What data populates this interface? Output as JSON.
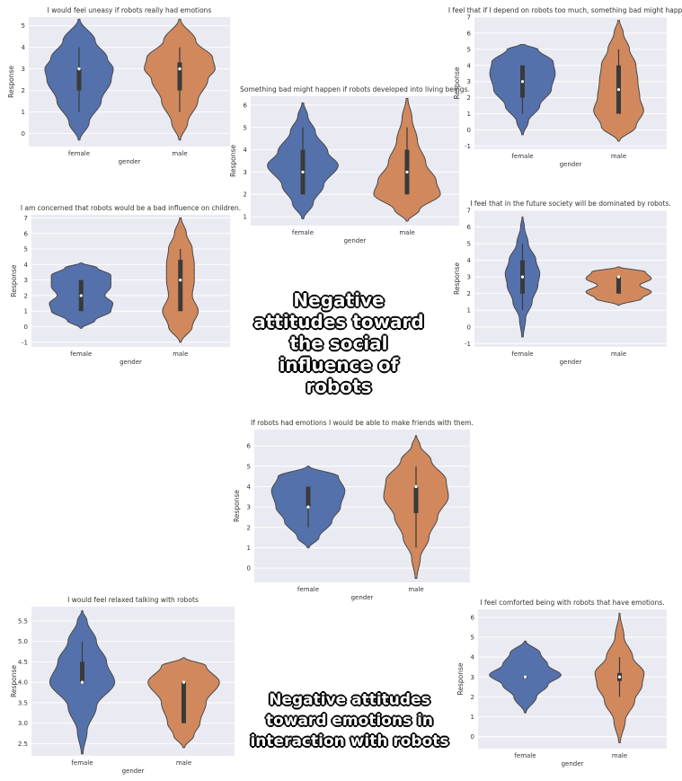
{
  "colors": {
    "female": "#5471ab",
    "male": "#d1885c",
    "plot_bg": "#eaeaf2",
    "grid": "#ffffff",
    "box": "#3a3a3a",
    "outline": "#4a4a4a"
  },
  "captions": {
    "social": "Negative attitudes toward the social influence of robots",
    "emotions": "Negative attitudes toward emotions in interaction with robots"
  },
  "chart_data": [
    {
      "id": "c1",
      "type": "violin",
      "title": "I would feel uneasy if robots really had emotions",
      "xlabel": "gender",
      "ylabel": "Response",
      "categories": [
        "female",
        "male"
      ],
      "ylim": [
        -0.6,
        5.4
      ],
      "yticks": [
        "0",
        "1",
        "2",
        "3",
        "4",
        "5"
      ],
      "series": [
        {
          "name": "female",
          "min": -0.3,
          "max": 5.3,
          "q1": 2,
          "median": 3,
          "q3": 3,
          "whisker_low": 1,
          "whisker_high": 4,
          "density": [
            [
              -0.3,
              0.02
            ],
            [
              0.5,
              0.25
            ],
            [
              1.5,
              0.55
            ],
            [
              2.5,
              0.8
            ],
            [
              3,
              0.85
            ],
            [
              3.5,
              0.7
            ],
            [
              4.3,
              0.4
            ],
            [
              5.3,
              0.02
            ]
          ]
        },
        {
          "name": "male",
          "min": -0.3,
          "max": 5.3,
          "q1": 2,
          "median": 3,
          "q3": 3.3,
          "whisker_low": 1,
          "whisker_high": 4,
          "density": [
            [
              -0.3,
              0.02
            ],
            [
              0.5,
              0.2
            ],
            [
              1.5,
              0.45
            ],
            [
              2.5,
              0.7
            ],
            [
              3,
              0.88
            ],
            [
              3.5,
              0.82
            ],
            [
              4.3,
              0.4
            ],
            [
              5.3,
              0.02
            ]
          ]
        }
      ]
    },
    {
      "id": "c2",
      "type": "violin",
      "title": "Something bad might happen if robots developed into living beings.",
      "xlabel": "gender",
      "ylabel": "Response",
      "categories": [
        "female",
        "male"
      ],
      "ylim": [
        0.6,
        6.4
      ],
      "yticks": [
        "1",
        "2",
        "3",
        "4",
        "5",
        "6"
      ],
      "series": [
        {
          "name": "female",
          "min": 0.9,
          "max": 6.1,
          "q1": 2,
          "median": 3,
          "q3": 4,
          "whisker_low": 2,
          "whisker_high": 5,
          "density": [
            [
              0.9,
              0.02
            ],
            [
              1.6,
              0.25
            ],
            [
              2.4,
              0.5
            ],
            [
              3.3,
              0.85
            ],
            [
              3.9,
              0.6
            ],
            [
              4.8,
              0.3
            ],
            [
              5.5,
              0.12
            ],
            [
              6.1,
              0.02
            ]
          ]
        },
        {
          "name": "male",
          "min": 0.8,
          "max": 6.3,
          "q1": 2,
          "median": 3,
          "q3": 4,
          "whisker_low": 2,
          "whisker_high": 5,
          "density": [
            [
              0.8,
              0.02
            ],
            [
              1.3,
              0.3
            ],
            [
              2,
              0.8
            ],
            [
              2.6,
              0.7
            ],
            [
              3.4,
              0.45
            ],
            [
              4.4,
              0.25
            ],
            [
              5.4,
              0.12
            ],
            [
              6.3,
              0.02
            ]
          ]
        }
      ]
    },
    {
      "id": "c3",
      "type": "violin",
      "title": "I feel that if I depend on robots too much, something bad might happen.",
      "xlabel": "gender",
      "ylabel": "Response",
      "categories": [
        "female",
        "male"
      ],
      "ylim": [
        -1.2,
        7.0
      ],
      "yticks": [
        "-1",
        "0",
        "1",
        "2",
        "3",
        "4",
        "5",
        "6",
        "7"
      ],
      "series": [
        {
          "name": "female",
          "min": -0.3,
          "max": 5.3,
          "q1": 2,
          "median": 3,
          "q3": 4,
          "whisker_low": 1,
          "whisker_high": 4,
          "density": [
            [
              -0.3,
              0.02
            ],
            [
              0.5,
              0.15
            ],
            [
              1.5,
              0.45
            ],
            [
              2.5,
              0.75
            ],
            [
              3.5,
              0.85
            ],
            [
              4.2,
              0.8
            ],
            [
              5.0,
              0.4
            ],
            [
              5.3,
              0.05
            ]
          ]
        },
        {
          "name": "male",
          "min": -0.7,
          "max": 6.8,
          "q1": 1,
          "median": 2.5,
          "q3": 4,
          "whisker_low": 1,
          "whisker_high": 5,
          "density": [
            [
              -0.7,
              0.02
            ],
            [
              0.2,
              0.45
            ],
            [
              1.2,
              0.65
            ],
            [
              2,
              0.55
            ],
            [
              3,
              0.5
            ],
            [
              4,
              0.45
            ],
            [
              5,
              0.28
            ],
            [
              6,
              0.12
            ],
            [
              6.8,
              0.02
            ]
          ]
        }
      ]
    },
    {
      "id": "c4",
      "type": "violin",
      "title": "I am concerned that robots would be a bad influence on children.",
      "xlabel": "gender",
      "ylabel": "Response",
      "categories": [
        "female",
        "male"
      ],
      "ylim": [
        -1.3,
        7.2
      ],
      "yticks": [
        "-1",
        "0",
        "1",
        "2",
        "3",
        "4",
        "5",
        "6",
        "7"
      ],
      "series": [
        {
          "name": "female",
          "min": -0.1,
          "max": 4.1,
          "q1": 1,
          "median": 2,
          "q3": 3,
          "whisker_low": 1,
          "whisker_high": 3,
          "density": [
            [
              -0.1,
              0.02
            ],
            [
              0.4,
              0.35
            ],
            [
              1.0,
              0.75
            ],
            [
              1.5,
              0.8
            ],
            [
              2.0,
              0.6
            ],
            [
              2.6,
              0.75
            ],
            [
              3.3,
              0.75
            ],
            [
              3.8,
              0.4
            ],
            [
              4.1,
              0.02
            ]
          ]
        },
        {
          "name": "male",
          "min": -1.0,
          "max": 7.0,
          "q1": 1,
          "median": 3,
          "q3": 4.3,
          "whisker_low": 1,
          "whisker_high": 5,
          "density": [
            [
              -1.0,
              0.02
            ],
            [
              0.0,
              0.3
            ],
            [
              1.0,
              0.45
            ],
            [
              2.0,
              0.3
            ],
            [
              3.0,
              0.35
            ],
            [
              4.0,
              0.35
            ],
            [
              5.0,
              0.3
            ],
            [
              6.0,
              0.15
            ],
            [
              7.0,
              0.02
            ]
          ]
        }
      ]
    },
    {
      "id": "c5",
      "type": "violin",
      "title": "I feel that in the future society will be dominated by robots.",
      "xlabel": "gender",
      "ylabel": "Response",
      "categories": [
        "female",
        "male"
      ],
      "ylim": [
        -1.2,
        7.0
      ],
      "yticks": [
        "-1",
        "0",
        "1",
        "2",
        "3",
        "4",
        "5",
        "6",
        "7"
      ],
      "series": [
        {
          "name": "female",
          "min": -0.6,
          "max": 6.6,
          "q1": 2,
          "median": 3,
          "q3": 4,
          "whisker_low": 1,
          "whisker_high": 5,
          "density": [
            [
              -0.6,
              0.02
            ],
            [
              0.5,
              0.08
            ],
            [
              1.5,
              0.25
            ],
            [
              2.5,
              0.4
            ],
            [
              3.2,
              0.45
            ],
            [
              4.0,
              0.35
            ],
            [
              5.0,
              0.15
            ],
            [
              6.0,
              0.05
            ],
            [
              6.6,
              0.01
            ]
          ]
        },
        {
          "name": "male",
          "min": 1.3,
          "max": 3.6,
          "q1": 2,
          "median": 3,
          "q3": 3,
          "whisker_low": 2,
          "whisker_high": 3,
          "density": [
            [
              1.3,
              0.02
            ],
            [
              1.7,
              0.6
            ],
            [
              2.1,
              0.85
            ],
            [
              2.5,
              0.55
            ],
            [
              2.9,
              0.85
            ],
            [
              3.3,
              0.7
            ],
            [
              3.6,
              0.02
            ]
          ]
        }
      ]
    },
    {
      "id": "c6",
      "type": "violin",
      "title": "If robots had emotions I would be able to make friends with them.",
      "xlabel": "gender",
      "ylabel": "Response",
      "categories": [
        "female",
        "male"
      ],
      "ylim": [
        -0.7,
        6.8
      ],
      "yticks": [
        "0",
        "1",
        "2",
        "3",
        "4",
        "5",
        "6"
      ],
      "series": [
        {
          "name": "female",
          "min": 1.0,
          "max": 5.0,
          "q1": 3,
          "median": 3,
          "q3": 4,
          "whisker_low": 2,
          "whisker_high": 4,
          "density": [
            [
              1.0,
              0.02
            ],
            [
              1.5,
              0.25
            ],
            [
              2.3,
              0.55
            ],
            [
              3.0,
              0.75
            ],
            [
              3.8,
              0.85
            ],
            [
              4.5,
              0.7
            ],
            [
              5.0,
              0.02
            ]
          ]
        },
        {
          "name": "male",
          "min": -0.5,
          "max": 6.5,
          "q1": 2.7,
          "median": 4,
          "q3": 4,
          "whisker_low": 1,
          "whisker_high": 5,
          "density": [
            [
              -0.5,
              0.02
            ],
            [
              0.5,
              0.1
            ],
            [
              1.5,
              0.3
            ],
            [
              2.5,
              0.5
            ],
            [
              3.5,
              0.75
            ],
            [
              4.3,
              0.7
            ],
            [
              5.3,
              0.35
            ],
            [
              6.0,
              0.1
            ],
            [
              6.5,
              0.01
            ]
          ]
        }
      ]
    },
    {
      "id": "c7",
      "type": "violin",
      "title": "I would feel relaxed talking with robots",
      "xlabel": "gender",
      "ylabel": "Response",
      "categories": [
        "female",
        "male"
      ],
      "ylim": [
        2.2,
        5.85
      ],
      "yticks": [
        "2.5",
        "3.0",
        "3.5",
        "4.0",
        "4.5",
        "5.0",
        "5.5"
      ],
      "series": [
        {
          "name": "female",
          "min": 2.25,
          "max": 5.75,
          "q1": 4,
          "median": 4,
          "q3": 4.5,
          "whisker_low": 4,
          "whisker_high": 5,
          "density": [
            [
              2.25,
              0.02
            ],
            [
              2.8,
              0.12
            ],
            [
              3.4,
              0.35
            ],
            [
              4.0,
              0.8
            ],
            [
              4.5,
              0.6
            ],
            [
              5.0,
              0.35
            ],
            [
              5.5,
              0.12
            ],
            [
              5.75,
              0.01
            ]
          ]
        },
        {
          "name": "male",
          "min": 2.4,
          "max": 4.6,
          "q1": 3,
          "median": 4,
          "q3": 4,
          "whisker_low": 3,
          "whisker_high": 4,
          "density": [
            [
              2.4,
              0.02
            ],
            [
              2.7,
              0.25
            ],
            [
              3.0,
              0.4
            ],
            [
              3.5,
              0.55
            ],
            [
              4.0,
              0.88
            ],
            [
              4.4,
              0.55
            ],
            [
              4.6,
              0.02
            ]
          ]
        }
      ]
    },
    {
      "id": "c8",
      "type": "violin",
      "title": "I feel comforted being with robots that have emotions.",
      "xlabel": "gender",
      "ylabel": "Response",
      "categories": [
        "female",
        "male"
      ],
      "ylim": [
        -0.6,
        6.4
      ],
      "yticks": [
        "0",
        "1",
        "2",
        "3",
        "4",
        "5",
        "6"
      ],
      "series": [
        {
          "name": "female",
          "min": 1.2,
          "max": 4.8,
          "q1": 3,
          "median": 3,
          "q3": 3,
          "whisker_low": 3,
          "whisker_high": 3,
          "density": [
            [
              1.2,
              0.02
            ],
            [
              2.0,
              0.3
            ],
            [
              2.6,
              0.6
            ],
            [
              3.1,
              0.95
            ],
            [
              3.6,
              0.6
            ],
            [
              4.2,
              0.4
            ],
            [
              4.8,
              0.02
            ]
          ]
        },
        {
          "name": "male",
          "min": -0.3,
          "max": 6.2,
          "q1": 2.8,
          "median": 3,
          "q3": 3.2,
          "whisker_low": 2,
          "whisker_high": 4,
          "density": [
            [
              -0.3,
              0.02
            ],
            [
              0.8,
              0.15
            ],
            [
              1.8,
              0.4
            ],
            [
              2.6,
              0.6
            ],
            [
              3.2,
              0.65
            ],
            [
              4.0,
              0.35
            ],
            [
              5.0,
              0.12
            ],
            [
              6.2,
              0.01
            ]
          ]
        }
      ]
    }
  ]
}
